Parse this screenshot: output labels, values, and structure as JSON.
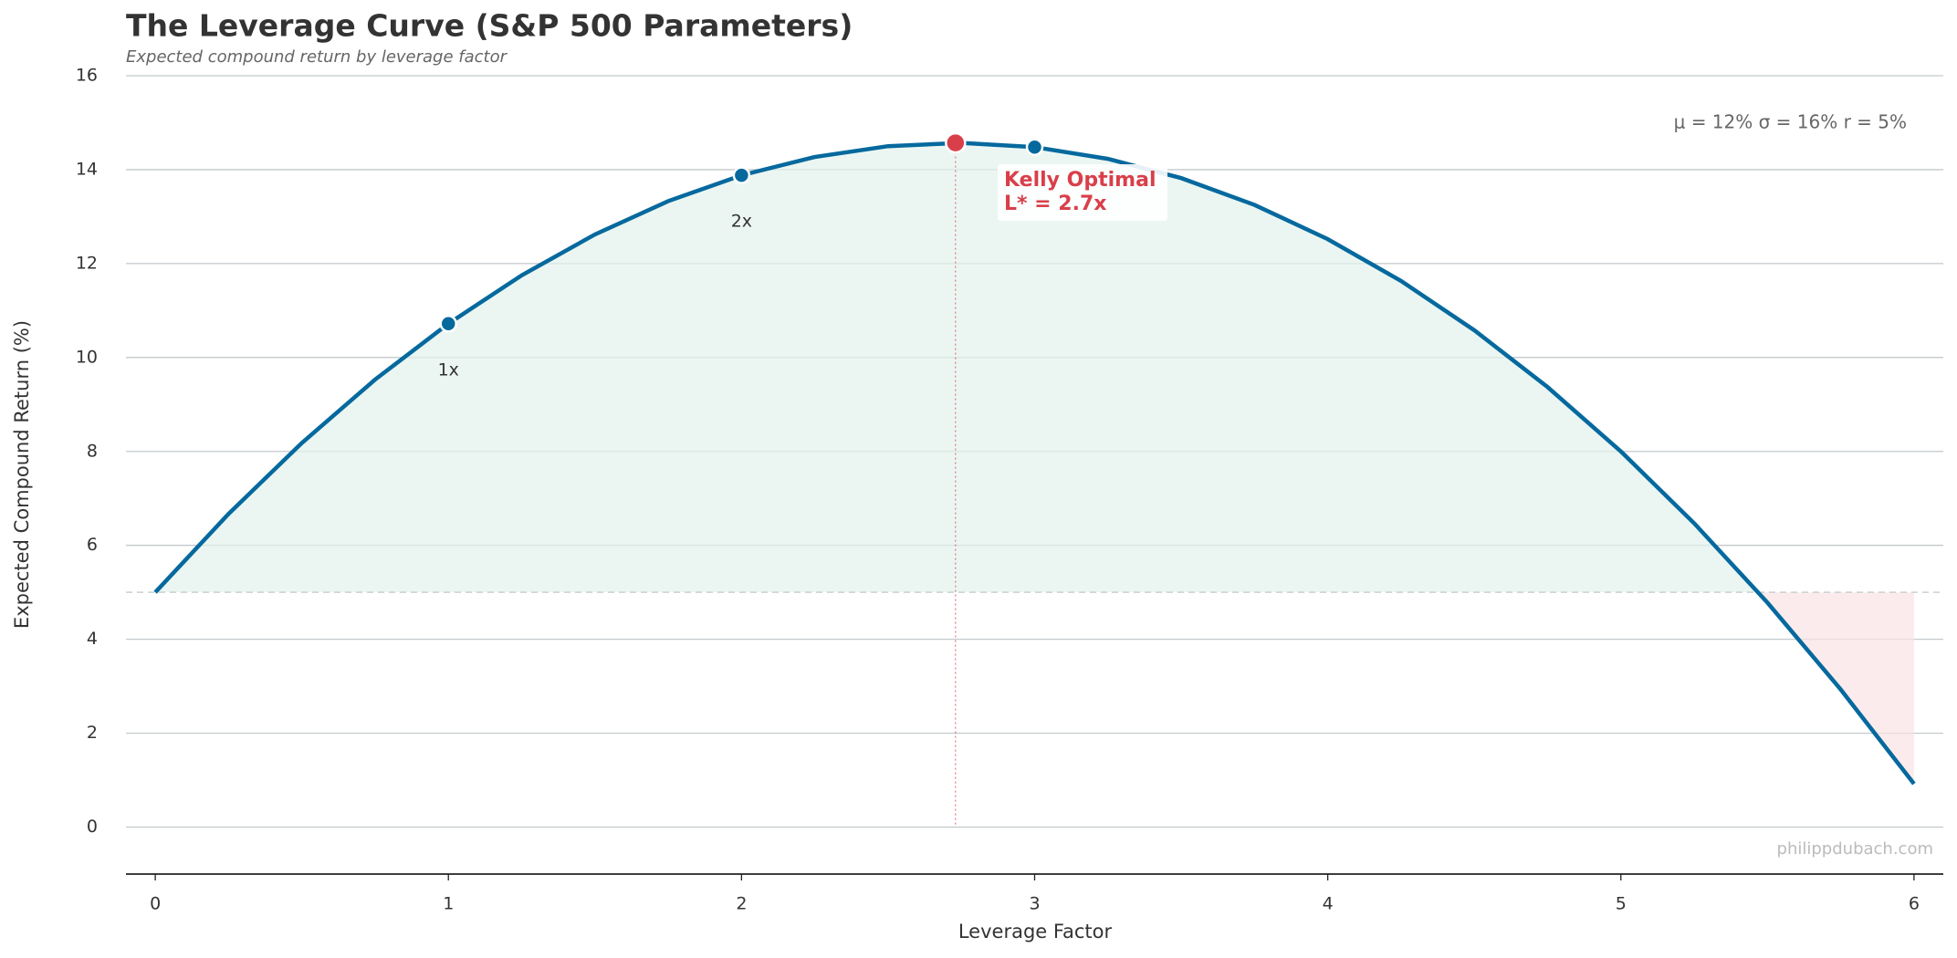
{
  "chart_data": {
    "type": "line",
    "title": "The Leverage Curve (S&P 500 Parameters)",
    "subtitle": "Expected compound return by leverage factor",
    "x_label": "Leverage Factor",
    "y_label": "Expected Compound Return (%)",
    "x": [
      0,
      0.25,
      0.5,
      0.75,
      1,
      1.25,
      1.5,
      1.75,
      2,
      2.25,
      2.5,
      2.75,
      3,
      3.25,
      3.5,
      3.75,
      4,
      4.25,
      4.5,
      4.75,
      5,
      5.25,
      5.5,
      5.75,
      6
    ],
    "series": [
      {
        "color": "#05699e",
        "values": [
          5,
          6.67,
          8.18,
          9.53,
          10.72,
          11.75,
          12.62,
          13.33,
          13.88,
          14.27,
          14.5,
          14.57,
          14.48,
          14.23,
          13.82,
          13.25,
          12.52,
          11.63,
          10.58,
          9.37,
          8,
          6.47,
          4.78,
          2.93,
          0.92
        ]
      }
    ],
    "reference_line": 5,
    "markers": [
      {
        "x": 1,
        "value": 10.72,
        "label": "1x"
      },
      {
        "x": 2,
        "value": 13.88,
        "label": "2x"
      },
      {
        "x": 3,
        "value": 14.48
      }
    ],
    "kelly": {
      "x": 2.73,
      "value": 14.57,
      "color": "#d93f4a",
      "label_lines": [
        "Kelly Optimal",
        "L* = 2.7x"
      ]
    },
    "parameters_note": "μ = 12%   σ = 16%   r = 5%",
    "watermark": "philippdubach.com",
    "xlim": [
      -0.1,
      6.1
    ],
    "xticks": [
      0,
      1,
      2,
      3,
      4,
      5,
      6
    ],
    "ylim": [
      -1,
      16
    ],
    "yticks": [
      0,
      2,
      4,
      6,
      8,
      10,
      12,
      14,
      16
    ],
    "grid": true
  }
}
